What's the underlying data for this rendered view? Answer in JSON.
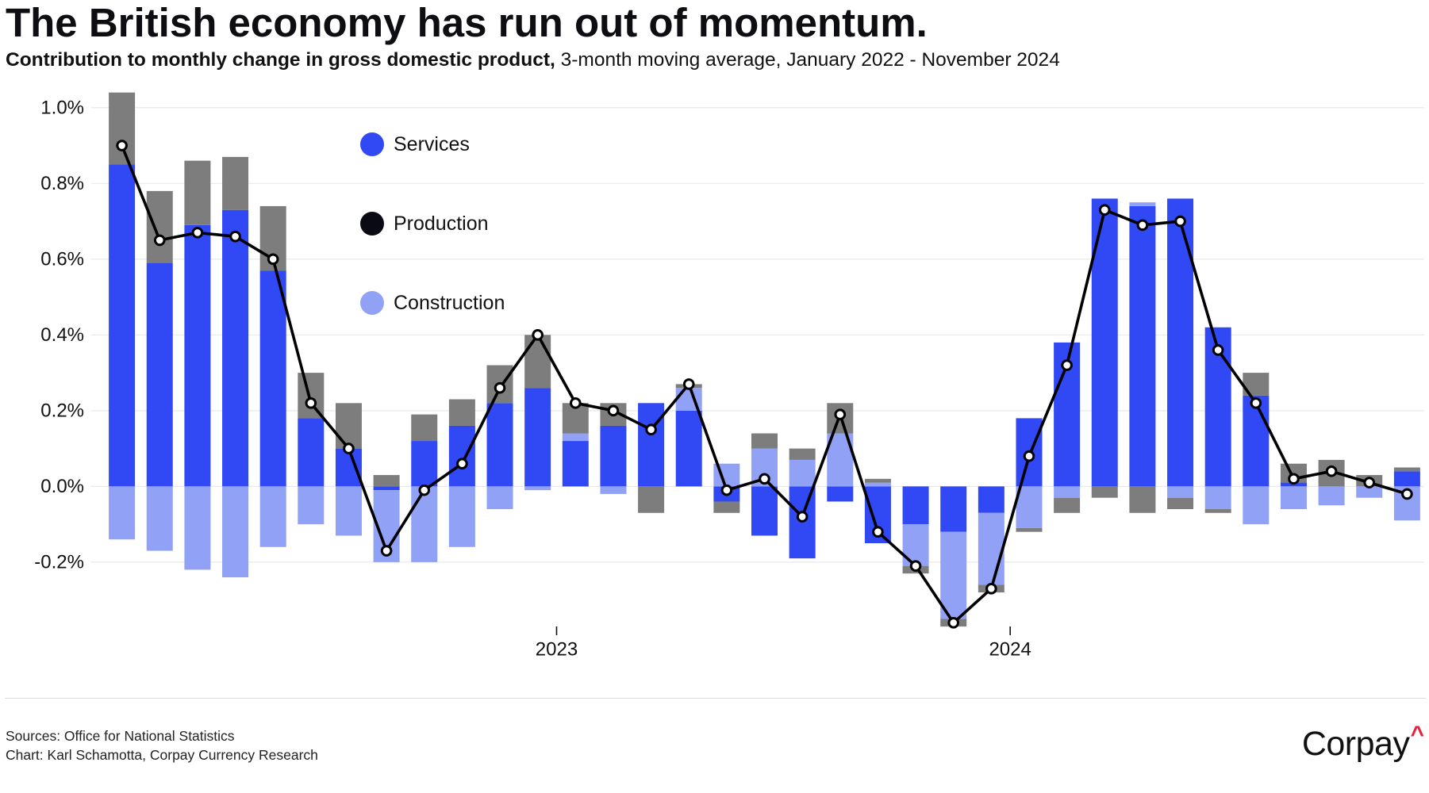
{
  "chart_data": {
    "type": "bar",
    "stacked": true,
    "title": "The British economy has run out of momentum.",
    "subtitle_lead": "Contribution to monthly change in gross domestic product,",
    "subtitle": "3-month moving average, January 2022 - November 2024",
    "categories": [
      "2022-01",
      "2022-02",
      "2022-03",
      "2022-04",
      "2022-05",
      "2022-06",
      "2022-07",
      "2022-08",
      "2022-09",
      "2022-10",
      "2022-11",
      "2022-12",
      "2023-01",
      "2023-02",
      "2023-03",
      "2023-04",
      "2023-05",
      "2023-06",
      "2023-07",
      "2023-08",
      "2023-09",
      "2023-10",
      "2023-11",
      "2023-12",
      "2024-01",
      "2024-02",
      "2024-03",
      "2024-04",
      "2024-05",
      "2024-06",
      "2024-07",
      "2024-08",
      "2024-09",
      "2024-10",
      "2024-11"
    ],
    "series": [
      {
        "name": "Services",
        "type": "bar",
        "color": "#3049f5",
        "values": [
          0.85,
          0.59,
          0.69,
          0.73,
          0.57,
          0.18,
          0.1,
          -0.01,
          0.12,
          0.16,
          0.22,
          0.26,
          0.12,
          0.16,
          0.22,
          0.2,
          -0.04,
          -0.13,
          -0.19,
          -0.04,
          -0.15,
          -0.1,
          -0.12,
          -0.07,
          0.18,
          0.38,
          0.76,
          0.74,
          0.76,
          0.42,
          0.24,
          0.01,
          0.0,
          0.0,
          0.04
        ]
      },
      {
        "name": "Construction",
        "type": "bar",
        "color": "#91a2f6",
        "values": [
          -0.14,
          -0.17,
          -0.22,
          -0.24,
          -0.16,
          -0.1,
          -0.13,
          -0.19,
          -0.2,
          -0.16,
          -0.06,
          -0.01,
          0.02,
          -0.02,
          0.0,
          0.06,
          0.06,
          0.1,
          0.07,
          0.14,
          0.01,
          -0.11,
          -0.23,
          -0.19,
          -0.11,
          -0.03,
          0.0,
          0.01,
          -0.03,
          -0.06,
          -0.1,
          -0.06,
          -0.05,
          -0.03,
          -0.09
        ]
      },
      {
        "name": "Production",
        "type": "bar",
        "color": "#7d7d7d",
        "legend_color": "#0a0a14",
        "values": [
          0.19,
          0.19,
          0.17,
          0.14,
          0.17,
          0.12,
          0.12,
          0.03,
          0.07,
          0.07,
          0.1,
          0.14,
          0.08,
          0.06,
          -0.07,
          0.01,
          -0.03,
          0.04,
          0.03,
          0.08,
          0.01,
          -0.02,
          -0.02,
          -0.02,
          -0.01,
          -0.04,
          -0.03,
          -0.07,
          -0.03,
          -0.01,
          0.06,
          0.05,
          0.07,
          0.03,
          0.01
        ]
      },
      {
        "type": "line",
        "color": "#000000",
        "values": [
          0.9,
          0.65,
          0.67,
          0.66,
          0.6,
          0.22,
          0.1,
          -0.17,
          -0.01,
          0.06,
          0.26,
          0.4,
          0.22,
          0.2,
          0.15,
          0.27,
          -0.01,
          0.02,
          -0.08,
          0.19,
          -0.12,
          -0.21,
          -0.36,
          -0.27,
          0.08,
          0.32,
          0.73,
          0.69,
          0.7,
          0.36,
          0.22,
          0.02,
          0.04,
          0.01,
          -0.02
        ]
      }
    ],
    "yticks": [
      {
        "value": -0.2,
        "label": "-0.2%"
      },
      {
        "value": 0.0,
        "label": "0.0%"
      },
      {
        "value": 0.2,
        "label": "0.2%"
      },
      {
        "value": 0.4,
        "label": "0.4%"
      },
      {
        "value": 0.6,
        "label": "0.6%"
      },
      {
        "value": 0.8,
        "label": "0.8%"
      },
      {
        "value": 1.0,
        "label": "1.0%"
      }
    ],
    "xticks": [
      "2023",
      "2024"
    ],
    "ylim": [
      -0.4,
      1.05
    ],
    "grid": true,
    "legend_placement": "top-left"
  },
  "footer": {
    "sources": "Sources: Office for National Statistics",
    "credit": "Chart: Karl Schamotta, Corpay Currency Research"
  },
  "logo": {
    "text": "Corpay",
    "mark": "^",
    "mark_color": "#e4233f"
  }
}
